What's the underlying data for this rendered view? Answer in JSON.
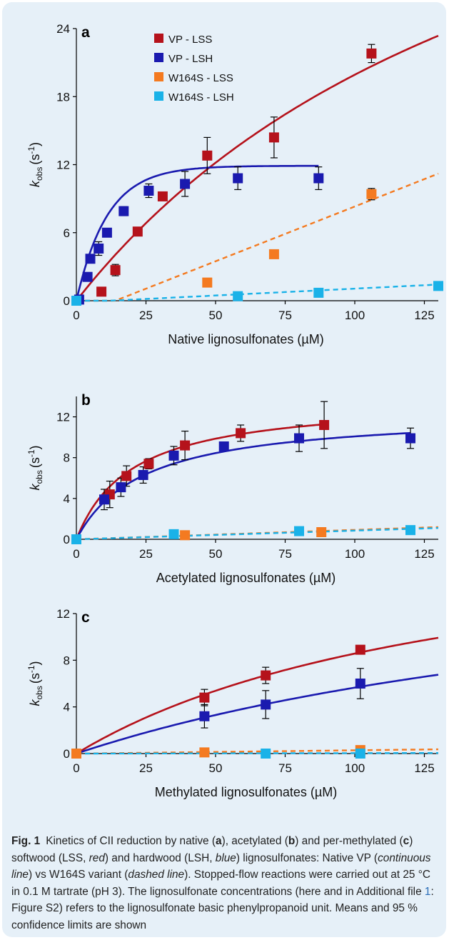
{
  "chart_data": [
    {
      "type": "scatter",
      "panel_label": "a",
      "xlabel": "Native lignosulfonates (µM)",
      "ylabel_main": "k",
      "ylabel_sub": "obs",
      "ylabel_unit": "(s",
      "ylabel_sup": "-1",
      "ylabel_close": ")",
      "xlim": [
        0,
        130
      ],
      "ylim": [
        0,
        24
      ],
      "xticks": [
        0,
        25,
        50,
        75,
        100,
        125
      ],
      "yticks": [
        0,
        6,
        12,
        18,
        24
      ],
      "legend": "top-left",
      "series": [
        {
          "name": "VP - LSS",
          "color": "#b5121b",
          "fit_style": "continuous",
          "x": [
            9,
            14,
            22,
            31,
            47,
            71,
            106
          ],
          "y": [
            0.8,
            2.7,
            6.1,
            9.2,
            12.8,
            14.4,
            21.8
          ],
          "err": [
            0,
            0.5,
            0,
            0,
            1.6,
            1.8,
            0.8
          ],
          "fit": {
            "vmax": 55,
            "km": 176
          }
        },
        {
          "name": "VP - LSH",
          "color": "#1a1aaf",
          "fit_style": "continuous",
          "x": [
            1,
            4,
            5,
            8,
            11,
            17,
            26,
            39,
            58,
            87
          ],
          "y": [
            0.1,
            2.1,
            3.7,
            4.6,
            6.0,
            7.9,
            9.7,
            10.3,
            10.8,
            10.8
          ],
          "err": [
            0,
            0,
            0.3,
            0.6,
            0,
            0.4,
            0.6,
            1.1,
            1.0,
            1.0
          ],
          "fit": {
            "vmax": 11.9,
            "a": 0.09,
            "fit_xmax": 87
          }
        },
        {
          "name": "W164S - LSS",
          "color": "#f47a20",
          "fit_style": "dashed",
          "x": [
            0,
            47,
            71,
            106
          ],
          "y": [
            0,
            1.6,
            4.1,
            9.4
          ],
          "err": [
            0,
            0,
            0,
            0.5
          ],
          "fit": {
            "slope": 0.0966,
            "x0": 14
          }
        },
        {
          "name": "W164S - LSH",
          "color": "#1ab2e8",
          "fit_style": "dashed",
          "x": [
            0,
            58,
            87,
            130
          ],
          "y": [
            0,
            0.4,
            0.7,
            1.3
          ],
          "err": [
            0,
            0,
            0,
            0
          ],
          "fit": {
            "slope": 0.0121,
            "x0": 12
          }
        }
      ]
    },
    {
      "type": "scatter",
      "panel_label": "b",
      "xlabel": "Acetylated lignosulfonates (µM)",
      "ylabel_main": "k",
      "ylabel_sub": "obs",
      "ylabel_unit": "(s",
      "ylabel_sup": "-1",
      "ylabel_close": ")",
      "xlim": [
        0,
        130
      ],
      "ylim": [
        0,
        14
      ],
      "xticks": [
        0,
        25,
        50,
        75,
        100,
        125
      ],
      "yticks": [
        0,
        4,
        8,
        12
      ],
      "series": [
        {
          "name": "VP - LSS",
          "color": "#b5121b",
          "fit_style": "continuous",
          "x": [
            0,
            12,
            18,
            26,
            39,
            59,
            89
          ],
          "y": [
            0,
            4.4,
            6.2,
            7.4,
            9.2,
            10.4,
            11.2
          ],
          "err": [
            0,
            1.3,
            1.0,
            0.5,
            1.4,
            0.8,
            2.3
          ],
          "fit": {
            "vmax": 13.8,
            "km": 20,
            "fit_xmax": 89
          }
        },
        {
          "name": "VP - LSH",
          "color": "#1a1aaf",
          "fit_style": "continuous",
          "x": [
            0,
            10,
            16,
            24,
            35,
            53,
            80,
            120
          ],
          "y": [
            0,
            3.9,
            5.1,
            6.3,
            8.2,
            9.1,
            9.9,
            9.9
          ],
          "err": [
            0,
            1.0,
            0.9,
            0.8,
            0.9,
            0,
            1.3,
            1.0
          ],
          "fit": {
            "vmax": 12.5,
            "km": 24,
            "fit_xmax": 120
          }
        },
        {
          "name": "W164S - LSS",
          "color": "#f47a20",
          "fit_style": "dashed",
          "x": [
            0,
            39,
            88
          ],
          "y": [
            0,
            0.4,
            0.7
          ],
          "err": [
            0,
            0,
            0
          ],
          "fit": {
            "slope": 0.0092,
            "x0": 0
          }
        },
        {
          "name": "W164S - LSH",
          "color": "#1ab2e8",
          "fit_style": "dashed",
          "x": [
            0,
            35,
            80,
            120
          ],
          "y": [
            0,
            0.5,
            0.8,
            0.9
          ],
          "err": [
            0,
            0,
            0,
            0
          ],
          "fit": {
            "slope": 0.0085,
            "x0": 0
          }
        }
      ]
    },
    {
      "type": "scatter",
      "panel_label": "c",
      "xlabel": "Methylated lignosulfonates (µM)",
      "ylabel_main": "k",
      "ylabel_sub": "obs",
      "ylabel_unit": "(s",
      "ylabel_sup": "-1",
      "ylabel_close": ")",
      "xlim": [
        0,
        130
      ],
      "ylim": [
        0,
        12
      ],
      "xticks": [
        0,
        25,
        50,
        75,
        100,
        125
      ],
      "yticks": [
        0,
        4,
        8,
        12
      ],
      "series": [
        {
          "name": "VP - LSS",
          "color": "#b5121b",
          "fit_style": "continuous",
          "x": [
            0,
            46,
            68,
            102
          ],
          "y": [
            0,
            4.8,
            6.7,
            8.9
          ],
          "err": [
            0,
            0.7,
            0.7,
            0
          ],
          "fit": {
            "vmax": 21,
            "km": 145
          }
        },
        {
          "name": "VP - LSH",
          "color": "#1a1aaf",
          "fit_style": "continuous",
          "x": [
            0,
            46,
            68,
            102
          ],
          "y": [
            0,
            3.2,
            4.2,
            6.0
          ],
          "err": [
            0,
            1.0,
            1.2,
            1.3
          ],
          "fit": {
            "vmax": 19.5,
            "km": 245
          }
        },
        {
          "name": "W164S - LSS",
          "color": "#f47a20",
          "fit_style": "dashed",
          "x": [
            0,
            46,
            102
          ],
          "y": [
            0,
            0.1,
            0.3
          ],
          "err": [
            0,
            0,
            0
          ],
          "fit": {
            "slope": 0.0028,
            "x0": 0
          }
        },
        {
          "name": "W164S - LSH",
          "color": "#1ab2e8",
          "fit_style": "dashed",
          "x": [
            68,
            102
          ],
          "y": [
            0,
            0
          ],
          "err": [
            0,
            0
          ],
          "fit": {
            "slope": 0.0004,
            "x0": 0
          }
        }
      ]
    }
  ],
  "caption": {
    "fig_label": "Fig. 1",
    "text_1": "Kinetics of CII reduction by native (",
    "a": "a",
    "text_2": "), acetylated (",
    "b": "b",
    "text_3": ") and per-methylated (",
    "c": "c",
    "text_4": ") softwood (LSS, ",
    "red": "red",
    "text_5": ") and hardwood (LSH, ",
    "blue": "blue",
    "text_6": ") lignosulfonates: Native VP (",
    "continuous": "continuous line",
    "text_7": ") vs W164S variant (",
    "dashed": "dashed line",
    "text_8": "). Stopped-flow reactions were carried out at 25 °C in 0.1 M tartrate (pH 3). The lignosulfonate concentrations (here and in Additional file ",
    "file_link": "1",
    "text_9": ": Figure S2) refers to the lignosulfonate basic phenylpropanoid unit. Means and 95 % confidence limits are shown"
  }
}
